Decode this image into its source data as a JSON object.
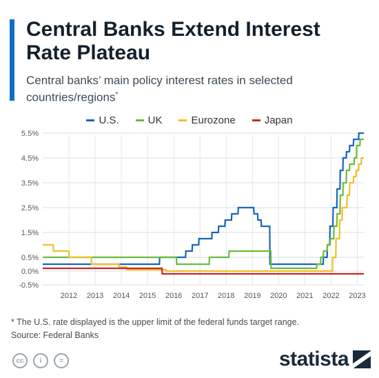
{
  "header": {
    "title": "Central Banks Extend Interest Rate Plateau",
    "subtitle": "Central banks’ main policy interest rates in selected countries/regions",
    "subtitle_marker": "*"
  },
  "footnote": {
    "note": "* The U.S. rate displayed is the upper limit of the federal funds target range.",
    "source": "Source: Federal Banks"
  },
  "brand": {
    "name": "statista",
    "icon": "statista-logo-icon"
  },
  "license_icons": [
    "creative-commons-icon",
    "attribution-icon",
    "no-derivatives-icon"
  ],
  "chart_data": {
    "type": "line",
    "title": "Central Banks Extend Interest Rate Plateau",
    "xlabel": "",
    "ylabel": "",
    "x_ticks": [
      "2012",
      "2013",
      "2014",
      "2015",
      "2016",
      "2017",
      "2018",
      "2019",
      "2020",
      "2021",
      "2022",
      "2023"
    ],
    "y_ticks": [
      "-0.5%",
      "0.0%",
      "0.5%",
      "1.5%",
      "2.5%",
      "3.5%",
      "4.5%",
      "5.5%"
    ],
    "xlim": [
      2011.5,
      2023.75
    ],
    "ylim": [
      -0.5,
      5.5
    ],
    "grid": true,
    "legend_position": "top",
    "series": [
      {
        "name": "U.S.",
        "color": "#1565c0",
        "points": [
          [
            2011.5,
            0.25
          ],
          [
            2015.95,
            0.25
          ],
          [
            2015.96,
            0.5
          ],
          [
            2016.95,
            0.5
          ],
          [
            2016.96,
            0.75
          ],
          [
            2017.2,
            0.75
          ],
          [
            2017.21,
            1.0
          ],
          [
            2017.45,
            1.0
          ],
          [
            2017.46,
            1.25
          ],
          [
            2017.95,
            1.25
          ],
          [
            2017.96,
            1.5
          ],
          [
            2018.2,
            1.5
          ],
          [
            2018.21,
            1.75
          ],
          [
            2018.45,
            1.75
          ],
          [
            2018.46,
            2.0
          ],
          [
            2018.7,
            2.0
          ],
          [
            2018.71,
            2.25
          ],
          [
            2018.95,
            2.25
          ],
          [
            2018.96,
            2.5
          ],
          [
            2019.55,
            2.5
          ],
          [
            2019.56,
            2.25
          ],
          [
            2019.7,
            2.25
          ],
          [
            2019.71,
            2.0
          ],
          [
            2019.83,
            2.0
          ],
          [
            2019.84,
            1.75
          ],
          [
            2020.16,
            1.75
          ],
          [
            2020.17,
            0.25
          ],
          [
            2022.2,
            0.25
          ],
          [
            2022.21,
            0.5
          ],
          [
            2022.35,
            0.5
          ],
          [
            2022.36,
            1.0
          ],
          [
            2022.45,
            1.0
          ],
          [
            2022.46,
            1.75
          ],
          [
            2022.57,
            1.75
          ],
          [
            2022.58,
            2.5
          ],
          [
            2022.72,
            2.5
          ],
          [
            2022.73,
            3.25
          ],
          [
            2022.84,
            3.25
          ],
          [
            2022.85,
            4.0
          ],
          [
            2022.95,
            4.0
          ],
          [
            2022.96,
            4.5
          ],
          [
            2023.08,
            4.5
          ],
          [
            2023.09,
            4.75
          ],
          [
            2023.2,
            4.75
          ],
          [
            2023.21,
            5.0
          ],
          [
            2023.35,
            5.0
          ],
          [
            2023.36,
            5.25
          ],
          [
            2023.55,
            5.25
          ],
          [
            2023.56,
            5.5
          ],
          [
            2023.75,
            5.5
          ]
        ]
      },
      {
        "name": "UK",
        "color": "#6cba3a",
        "points": [
          [
            2011.5,
            0.5
          ],
          [
            2016.6,
            0.5
          ],
          [
            2016.61,
            0.25
          ],
          [
            2017.85,
            0.25
          ],
          [
            2017.86,
            0.5
          ],
          [
            2018.6,
            0.5
          ],
          [
            2018.61,
            0.75
          ],
          [
            2020.2,
            0.75
          ],
          [
            2020.21,
            0.1
          ],
          [
            2021.95,
            0.1
          ],
          [
            2021.96,
            0.25
          ],
          [
            2022.1,
            0.25
          ],
          [
            2022.11,
            0.5
          ],
          [
            2022.2,
            0.5
          ],
          [
            2022.21,
            0.75
          ],
          [
            2022.35,
            0.75
          ],
          [
            2022.36,
            1.0
          ],
          [
            2022.46,
            1.0
          ],
          [
            2022.47,
            1.25
          ],
          [
            2022.6,
            1.25
          ],
          [
            2022.61,
            1.75
          ],
          [
            2022.72,
            1.75
          ],
          [
            2022.73,
            2.25
          ],
          [
            2022.84,
            2.25
          ],
          [
            2022.85,
            3.0
          ],
          [
            2022.95,
            3.0
          ],
          [
            2022.96,
            3.5
          ],
          [
            2023.08,
            3.5
          ],
          [
            2023.09,
            4.0
          ],
          [
            2023.2,
            4.0
          ],
          [
            2023.21,
            4.25
          ],
          [
            2023.38,
            4.25
          ],
          [
            2023.39,
            4.5
          ],
          [
            2023.47,
            4.5
          ],
          [
            2023.48,
            5.0
          ],
          [
            2023.6,
            5.0
          ],
          [
            2023.61,
            5.25
          ],
          [
            2023.75,
            5.25
          ]
        ]
      },
      {
        "name": "Eurozone",
        "color": "#f0c024",
        "points": [
          [
            2011.5,
            1.0
          ],
          [
            2011.9,
            1.0
          ],
          [
            2011.91,
            0.75
          ],
          [
            2012.5,
            0.75
          ],
          [
            2012.51,
            0.5
          ],
          [
            2013.35,
            0.5
          ],
          [
            2013.36,
            0.25
          ],
          [
            2014.4,
            0.25
          ],
          [
            2014.41,
            0.15
          ],
          [
            2014.7,
            0.15
          ],
          [
            2014.71,
            0.05
          ],
          [
            2016.2,
            0.05
          ],
          [
            2016.21,
            0.0
          ],
          [
            2022.55,
            0.0
          ],
          [
            2022.56,
            0.5
          ],
          [
            2022.68,
            0.5
          ],
          [
            2022.69,
            1.25
          ],
          [
            2022.82,
            1.25
          ],
          [
            2022.83,
            2.0
          ],
          [
            2022.92,
            2.0
          ],
          [
            2022.93,
            2.5
          ],
          [
            2023.1,
            2.5
          ],
          [
            2023.11,
            3.0
          ],
          [
            2023.2,
            3.0
          ],
          [
            2023.21,
            3.5
          ],
          [
            2023.35,
            3.5
          ],
          [
            2023.36,
            3.75
          ],
          [
            2023.45,
            3.75
          ],
          [
            2023.46,
            4.0
          ],
          [
            2023.55,
            4.0
          ],
          [
            2023.56,
            4.25
          ],
          [
            2023.65,
            4.25
          ],
          [
            2023.66,
            4.5
          ],
          [
            2023.75,
            4.5
          ]
        ]
      },
      {
        "name": "Japan",
        "color": "#c62828",
        "points": [
          [
            2011.5,
            0.1
          ],
          [
            2016.05,
            0.1
          ],
          [
            2016.06,
            -0.1
          ],
          [
            2023.75,
            -0.1
          ]
        ]
      }
    ]
  }
}
